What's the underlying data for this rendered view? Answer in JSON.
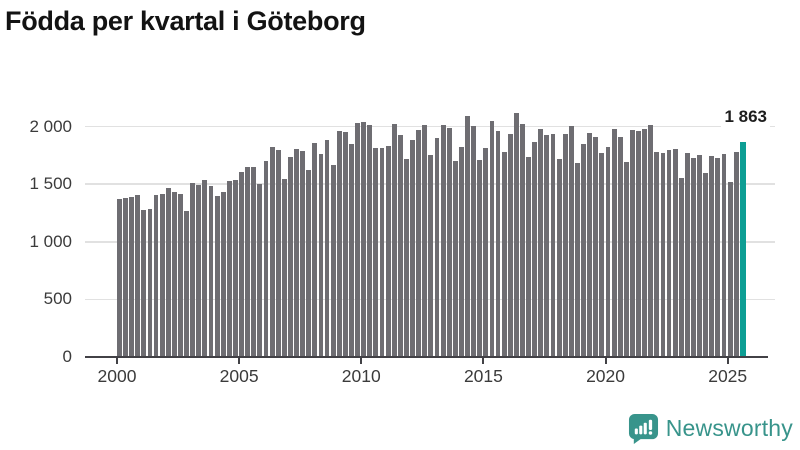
{
  "title": "Födda per kvartal i Göteborg",
  "chart_data": {
    "type": "bar",
    "title": "Födda per kvartal i Göteborg",
    "xlabel": "",
    "ylabel": "",
    "grid": "horizontal",
    "legend": "none",
    "ylim": [
      0,
      2100
    ],
    "yticks": [
      "0",
      "500",
      "1 000",
      "1 500",
      "2 000"
    ],
    "ytick_values": [
      0,
      500,
      1000,
      1500,
      2000
    ],
    "xticks": [
      "2000",
      "2005",
      "2010",
      "2015",
      "2020",
      "2025"
    ],
    "bar_color": "#6e6d72",
    "highlight_color": "#0d9e94",
    "categories": [
      "2000 Q1",
      "2000 Q2",
      "2000 Q3",
      "2000 Q4",
      "2001 Q1",
      "2001 Q2",
      "2001 Q3",
      "2001 Q4",
      "2002 Q1",
      "2002 Q2",
      "2002 Q3",
      "2002 Q4",
      "2003 Q1",
      "2003 Q2",
      "2003 Q3",
      "2003 Q4",
      "2004 Q1",
      "2004 Q2",
      "2004 Q3",
      "2004 Q4",
      "2005 Q1",
      "2005 Q2",
      "2005 Q3",
      "2005 Q4",
      "2006 Q1",
      "2006 Q2",
      "2006 Q3",
      "2006 Q4",
      "2007 Q1",
      "2007 Q2",
      "2007 Q3",
      "2007 Q4",
      "2008 Q1",
      "2008 Q2",
      "2008 Q3",
      "2008 Q4",
      "2009 Q1",
      "2009 Q2",
      "2009 Q3",
      "2009 Q4",
      "2010 Q1",
      "2010 Q2",
      "2010 Q3",
      "2010 Q4",
      "2011 Q1",
      "2011 Q2",
      "2011 Q3",
      "2011 Q4",
      "2012 Q1",
      "2012 Q2",
      "2012 Q3",
      "2012 Q4",
      "2013 Q1",
      "2013 Q2",
      "2013 Q3",
      "2013 Q4",
      "2014 Q1",
      "2014 Q2",
      "2014 Q3",
      "2014 Q4",
      "2015 Q1",
      "2015 Q2",
      "2015 Q3",
      "2015 Q4",
      "2016 Q1",
      "2016 Q2",
      "2016 Q3",
      "2016 Q4",
      "2017 Q1",
      "2017 Q2",
      "2017 Q3",
      "2017 Q4",
      "2018 Q1",
      "2018 Q2",
      "2018 Q3",
      "2018 Q4",
      "2019 Q1",
      "2019 Q2",
      "2019 Q3",
      "2019 Q4",
      "2020 Q1",
      "2020 Q2",
      "2020 Q3",
      "2020 Q4",
      "2021 Q1",
      "2021 Q2",
      "2021 Q3",
      "2021 Q4",
      "2022 Q1",
      "2022 Q2",
      "2022 Q3",
      "2022 Q4",
      "2023 Q1",
      "2023 Q2",
      "2023 Q3",
      "2023 Q4",
      "2024 Q1",
      "2024 Q2",
      "2024 Q3",
      "2024 Q4",
      "2025 Q1",
      "2025 Q2",
      "2025 Q3"
    ],
    "values": [
      1372,
      1378,
      1390,
      1405,
      1277,
      1286,
      1404,
      1416,
      1468,
      1433,
      1410,
      1271,
      1511,
      1491,
      1540,
      1488,
      1401,
      1436,
      1530,
      1540,
      1604,
      1647,
      1647,
      1497,
      1699,
      1821,
      1792,
      1546,
      1734,
      1807,
      1786,
      1624,
      1855,
      1763,
      1879,
      1662,
      1965,
      1951,
      1844,
      2029,
      2037,
      2017,
      1812,
      1815,
      1829,
      2020,
      1925,
      1714,
      1881,
      1968,
      2011,
      1751,
      1896,
      2011,
      1991,
      1699,
      1823,
      2089,
      2003,
      1708,
      1815,
      2049,
      1960,
      1780,
      1939,
      2118,
      2026,
      1737,
      1867,
      1977,
      1922,
      1939,
      1714,
      1931,
      2003,
      1679,
      1852,
      1945,
      1910,
      1766,
      1823,
      1974,
      1905,
      1694,
      1968,
      1959,
      1982,
      2011,
      1780,
      1766,
      1795,
      1809,
      1549,
      1766,
      1723,
      1757,
      1593,
      1742,
      1730,
      1760,
      1520,
      1775,
      1863
    ],
    "highlight": {
      "category": "2025 Q3",
      "value": 1863,
      "label": "1 863"
    }
  },
  "branding": {
    "logo_text": "Newsworthy",
    "color": "#38948b"
  }
}
